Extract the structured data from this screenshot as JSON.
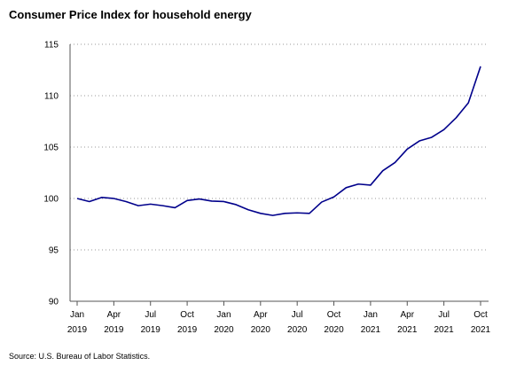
{
  "title": "Consumer Price Index for household energy",
  "source": "Source: U.S. Bureau of Labor Statistics.",
  "chart_data": {
    "type": "line",
    "title": "Consumer Price Index for household energy",
    "xlabel": "",
    "ylabel": "",
    "ylim": [
      90,
      115
    ],
    "y_ticks": [
      "90",
      "95",
      "100",
      "105",
      "110",
      "115"
    ],
    "x_ticks": [
      {
        "month": "Jan",
        "year": "2019"
      },
      {
        "month": "Apr",
        "year": "2019"
      },
      {
        "month": "Jul",
        "year": "2019"
      },
      {
        "month": "Oct",
        "year": "2019"
      },
      {
        "month": "Jan",
        "year": "2020"
      },
      {
        "month": "Apr",
        "year": "2020"
      },
      {
        "month": "Jul",
        "year": "2020"
      },
      {
        "month": "Oct",
        "year": "2020"
      },
      {
        "month": "Jan",
        "year": "2021"
      },
      {
        "month": "Apr",
        "year": "2021"
      },
      {
        "month": "Jul",
        "year": "2021"
      },
      {
        "month": "Oct",
        "year": "2021"
      }
    ],
    "grid": "horizontal dotted",
    "line_color": "#00008b",
    "series": [
      {
        "x": [
          "Jan 2019",
          "Feb 2019",
          "Mar 2019",
          "Apr 2019",
          "May 2019",
          "Jun 2019",
          "Jul 2019",
          "Aug 2019",
          "Sep 2019",
          "Oct 2019",
          "Nov 2019",
          "Dec 2019",
          "Jan 2020",
          "Feb 2020",
          "Mar 2020",
          "Apr 2020",
          "May 2020",
          "Jun 2020",
          "Jul 2020",
          "Aug 2020",
          "Sep 2020",
          "Oct 2020",
          "Nov 2020",
          "Dec 2020",
          "Jan 2021",
          "Feb 2021",
          "Mar 2021",
          "Apr 2021",
          "May 2021",
          "Jun 2021",
          "Jul 2021",
          "Aug 2021",
          "Sep 2021",
          "Oct 2021"
        ],
        "values": [
          100.0,
          99.7,
          100.1,
          100.0,
          99.7,
          99.3,
          99.45,
          99.3,
          99.1,
          99.8,
          99.95,
          99.75,
          99.7,
          99.4,
          98.9,
          98.55,
          98.35,
          98.55,
          98.6,
          98.55,
          99.65,
          100.15,
          101.05,
          101.4,
          101.3,
          102.7,
          103.5,
          104.8,
          105.6,
          105.95,
          106.7,
          107.85,
          109.3,
          112.85
        ]
      }
    ]
  }
}
